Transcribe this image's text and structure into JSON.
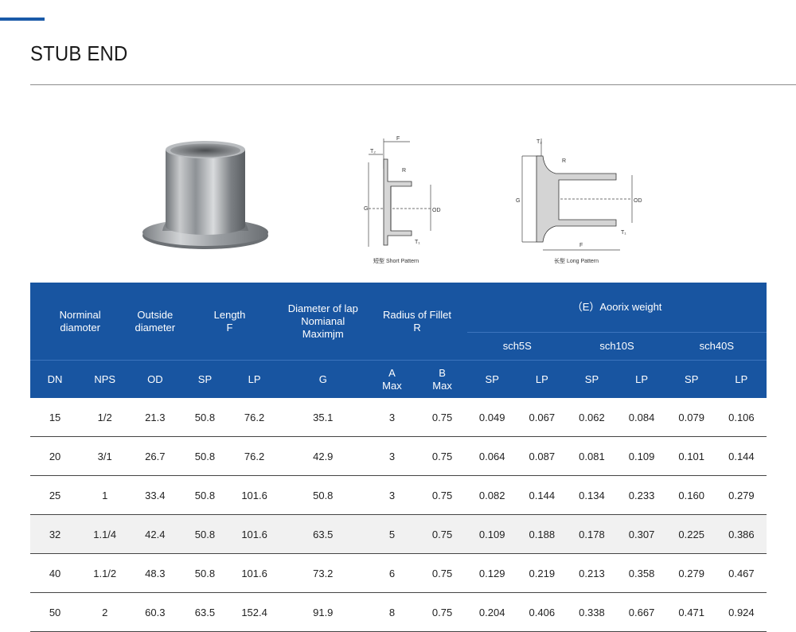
{
  "header": {
    "title": "STUB END"
  },
  "figures": {
    "short_caption": "短型 Short Pattern",
    "long_caption": "长型 Long Pattern",
    "labels": {
      "f": "F",
      "t2": "T₂",
      "r": "R",
      "g": "G",
      "od": "OD",
      "t1": "T₁"
    }
  },
  "colors": {
    "table_header": "#1855a1",
    "accent": "#1a5aa8",
    "shaded_row": "#f1f1f1"
  },
  "table": {
    "group_headers": {
      "nominal": "Norminal\ndiamoter",
      "outside": "Outside\ndiameter",
      "length": "Length\nF",
      "lap": "Diameter of lap\nNomianal\nMaximjm",
      "fillet": "Radius of Fillet\nR",
      "weight": "（E）Aoorix weight"
    },
    "schedules": [
      "sch5S",
      "sch10S",
      "sch40S"
    ],
    "columns": [
      "DN",
      "NPS",
      "OD",
      "SP",
      "LP",
      "G",
      "A\nMax",
      "B\nMax",
      "SP",
      "LP",
      "SP",
      "LP",
      "SP",
      "LP"
    ],
    "rows": [
      [
        "15",
        "1/2",
        "21.3",
        "50.8",
        "76.2",
        "35.1",
        "3",
        "0.75",
        "0.049",
        "0.067",
        "0.062",
        "0.084",
        "0.079",
        "0.106"
      ],
      [
        "20",
        "3/1",
        "26.7",
        "50.8",
        "76.2",
        "42.9",
        "3",
        "0.75",
        "0.064",
        "0.087",
        "0.081",
        "0.109",
        "0.101",
        "0.144"
      ],
      [
        "25",
        "1",
        "33.4",
        "50.8",
        "101.6",
        "50.8",
        "3",
        "0.75",
        "0.082",
        "0.144",
        "0.134",
        "0.233",
        "0.160",
        "0.279"
      ],
      [
        "32",
        "1.1/4",
        "42.4",
        "50.8",
        "101.6",
        "63.5",
        "5",
        "0.75",
        "0.109",
        "0.188",
        "0.178",
        "0.307",
        "0.225",
        "0.386"
      ],
      [
        "40",
        "1.1/2",
        "48.3",
        "50.8",
        "101.6",
        "73.2",
        "6",
        "0.75",
        "0.129",
        "0.219",
        "0.213",
        "0.358",
        "0.279",
        "0.467"
      ],
      [
        "50",
        "2",
        "60.3",
        "63.5",
        "152.4",
        "91.9",
        "8",
        "0.75",
        "0.204",
        "0.406",
        "0.338",
        "0.667",
        "0.471",
        "0.924"
      ]
    ]
  }
}
